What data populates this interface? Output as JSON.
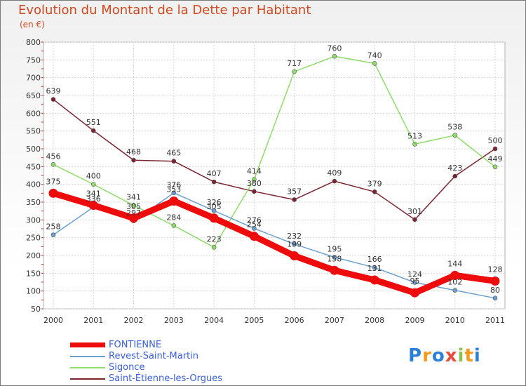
{
  "title": "Evolution du Montant de la Dette par Habitant",
  "subtitle": "(en €)",
  "logo": {
    "text": "Proxiti",
    "colors": [
      "#2b7fd6",
      "#f29a1e",
      "#2b7fd6",
      "#e84a3c",
      "#8bc34a",
      "#f29a1e",
      "#2b7fd6"
    ]
  },
  "chart_data": {
    "type": "line",
    "title": "Evolution du Montant de la Dette par Habitant",
    "ylabel": "(en €)",
    "xlabel": "",
    "x": [
      "2000",
      "2001",
      "2002",
      "2003",
      "2004",
      "2005",
      "2006",
      "2007",
      "2008",
      "2009",
      "2010",
      "2011"
    ],
    "ylim": [
      50,
      800
    ],
    "yticks": [
      "50",
      "100",
      "150",
      "200",
      "250",
      "300",
      "350",
      "400",
      "450",
      "500",
      "550",
      "600",
      "650",
      "700",
      "750",
      "800"
    ],
    "grid": true,
    "legend": "bottom-left",
    "series": [
      {
        "name": "Saint-Étienne-les-Orgues",
        "color": "#7b2430",
        "values": [
          639,
          551,
          468,
          465,
          407,
          380,
          357,
          409,
          379,
          301,
          423,
          500
        ],
        "labels": [
          "639",
          "551",
          "468",
          "465",
          "407",
          "380",
          "357",
          "409",
          "379",
          "301",
          "423",
          "500"
        ]
      },
      {
        "name": "Sigonce",
        "color": "#8fdc6a",
        "values": [
          456,
          400,
          341,
          284,
          223,
          414,
          717,
          760,
          740,
          513,
          538,
          449
        ],
        "labels": [
          "456",
          "400",
          "341",
          "284",
          "223",
          "414",
          "717",
          "760",
          "740",
          "513",
          "538",
          "449"
        ]
      },
      {
        "name": "Revest-Saint-Martin",
        "color": "#6a9fd0",
        "values": [
          258,
          336,
          297,
          376,
          326,
          276,
          232,
          195,
          166,
          124,
          102,
          80
        ],
        "labels": [
          "258",
          "336",
          "297",
          "376",
          "326",
          "276",
          "232",
          "195",
          "166",
          "124",
          "102",
          "80"
        ]
      },
      {
        "name": "FONTIENNE",
        "color": "#ee0b0b",
        "values": [
          375,
          341,
          305,
          353,
          305,
          254,
          199,
          158,
          131,
          95,
          144,
          128
        ],
        "labels": [
          "375",
          "341",
          "305",
          "353",
          "305",
          "254",
          "199",
          "158",
          "131",
          "95",
          "144",
          "128"
        ]
      }
    ]
  },
  "legend": [
    {
      "label": "FONTIENNE",
      "color": "#ee0b0b"
    },
    {
      "label": "Revest-Saint-Martin",
      "color": "#6a9fd0"
    },
    {
      "label": "Sigonce",
      "color": "#8fdc6a"
    },
    {
      "label": "Saint-Étienne-les-Orgues",
      "color": "#7b2430"
    }
  ]
}
